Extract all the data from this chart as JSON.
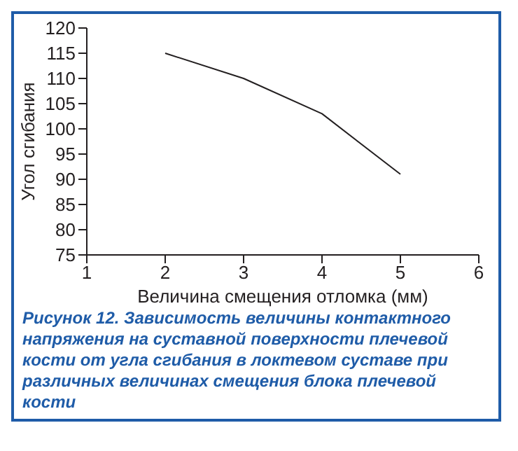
{
  "chart_data": {
    "type": "line",
    "xlabel": "Величина смещения отломка (мм)",
    "ylabel": "Угол сгибания",
    "x": [
      2,
      3,
      4,
      5
    ],
    "series": [
      {
        "color": "#231f20",
        "values": [
          115,
          110,
          103,
          91
        ]
      }
    ],
    "xlim": [
      1,
      6
    ],
    "xticks": [
      1,
      2,
      3,
      4,
      5,
      6
    ],
    "ylim": [
      75,
      120
    ],
    "yticks": [
      75,
      80,
      85,
      90,
      95,
      100,
      105,
      110,
      115,
      120
    ],
    "grid": false,
    "legend": false,
    "marker": "none",
    "line_style": "solid",
    "annotations": [
      "Рисунок 12. Зависимость величины контактного напряжения на суставной поверхности плечевой кости от угла сгибания в локтевом суставе при различных величинах смещения блока плечевой кости"
    ]
  }
}
